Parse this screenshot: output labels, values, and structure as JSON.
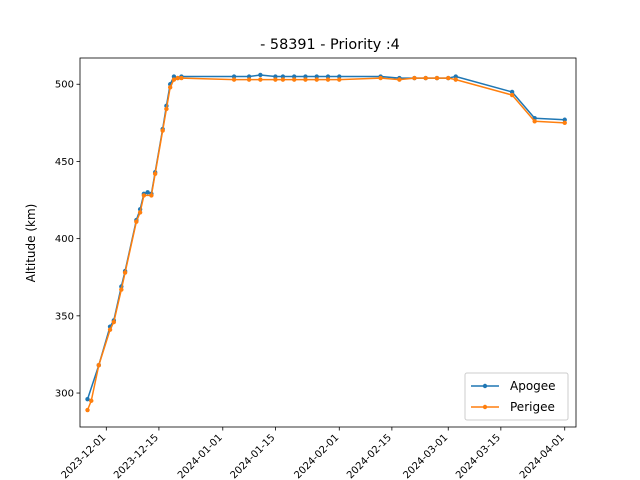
{
  "chart_data": {
    "type": "line",
    "title": "- 58391 - Priority :4",
    "xlabel": "",
    "ylabel": "Altitude (km)",
    "x_type": "date",
    "xlim": [
      "2023-11-24",
      "2024-04-04"
    ],
    "ylim": [
      278,
      517
    ],
    "yticks": [
      300,
      350,
      400,
      450,
      500
    ],
    "xticks": [
      "2023-12-01",
      "2023-12-15",
      "2024-01-01",
      "2024-01-15",
      "2024-02-01",
      "2024-02-15",
      "2024-03-01",
      "2024-03-15",
      "2024-04-01"
    ],
    "legend_position": "lower right",
    "grid": false,
    "series": [
      {
        "name": "Apogee",
        "color": "#1f77b4",
        "points": [
          [
            "2023-11-26",
            296
          ],
          [
            "2023-11-29",
            318
          ],
          [
            "2023-12-02",
            343
          ],
          [
            "2023-12-03",
            347
          ],
          [
            "2023-12-05",
            369
          ],
          [
            "2023-12-06",
            379
          ],
          [
            "2023-12-09",
            412
          ],
          [
            "2023-12-10",
            419
          ],
          [
            "2023-12-11",
            429
          ],
          [
            "2023-12-12",
            430
          ],
          [
            "2023-12-13",
            429
          ],
          [
            "2023-12-14",
            443
          ],
          [
            "2023-12-16",
            471
          ],
          [
            "2023-12-17",
            486
          ],
          [
            "2023-12-18",
            500
          ],
          [
            "2023-12-19",
            505
          ],
          [
            "2023-12-20",
            504
          ],
          [
            "2023-12-21",
            505
          ],
          [
            "2024-01-04",
            505
          ],
          [
            "2024-01-08",
            505
          ],
          [
            "2024-01-11",
            506
          ],
          [
            "2024-01-15",
            505
          ],
          [
            "2024-01-17",
            505
          ],
          [
            "2024-01-20",
            505
          ],
          [
            "2024-01-23",
            505
          ],
          [
            "2024-01-26",
            505
          ],
          [
            "2024-01-29",
            505
          ],
          [
            "2024-02-01",
            505
          ],
          [
            "2024-02-12",
            505
          ],
          [
            "2024-02-17",
            504
          ],
          [
            "2024-02-21",
            504
          ],
          [
            "2024-02-24",
            504
          ],
          [
            "2024-02-27",
            504
          ],
          [
            "2024-03-01",
            504
          ],
          [
            "2024-03-03",
            505
          ],
          [
            "2024-03-18",
            495
          ],
          [
            "2024-03-24",
            478
          ],
          [
            "2024-04-01",
            477
          ]
        ]
      },
      {
        "name": "Perigee",
        "color": "#ff7f0e",
        "points": [
          [
            "2023-11-26",
            289
          ],
          [
            "2023-11-27",
            295
          ],
          [
            "2023-11-29",
            318
          ],
          [
            "2023-12-02",
            341
          ],
          [
            "2023-12-03",
            346
          ],
          [
            "2023-12-05",
            367
          ],
          [
            "2023-12-06",
            378
          ],
          [
            "2023-12-09",
            411
          ],
          [
            "2023-12-10",
            417
          ],
          [
            "2023-12-11",
            428
          ],
          [
            "2023-12-13",
            428
          ],
          [
            "2023-12-14",
            442
          ],
          [
            "2023-12-16",
            470
          ],
          [
            "2023-12-17",
            484
          ],
          [
            "2023-12-18",
            498
          ],
          [
            "2023-12-19",
            503
          ],
          [
            "2023-12-20",
            504
          ],
          [
            "2023-12-21",
            504
          ],
          [
            "2024-01-04",
            503
          ],
          [
            "2024-01-08",
            503
          ],
          [
            "2024-01-11",
            503
          ],
          [
            "2024-01-15",
            503
          ],
          [
            "2024-01-17",
            503
          ],
          [
            "2024-01-20",
            503
          ],
          [
            "2024-01-23",
            503
          ],
          [
            "2024-01-26",
            503
          ],
          [
            "2024-01-29",
            503
          ],
          [
            "2024-02-01",
            503
          ],
          [
            "2024-02-12",
            504
          ],
          [
            "2024-02-17",
            503
          ],
          [
            "2024-02-21",
            504
          ],
          [
            "2024-02-24",
            504
          ],
          [
            "2024-02-27",
            504
          ],
          [
            "2024-03-01",
            504
          ],
          [
            "2024-03-03",
            503
          ],
          [
            "2024-03-18",
            493
          ],
          [
            "2024-03-24",
            476
          ],
          [
            "2024-04-01",
            475
          ]
        ]
      }
    ]
  }
}
